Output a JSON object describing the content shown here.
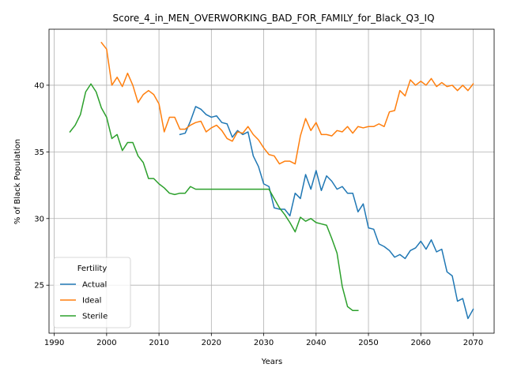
{
  "chart_data": {
    "type": "line",
    "title": "Score_4_in_MEN_OVERWORKING_BAD_FOR_FAMILY_for_Black_Q3_IQ",
    "xlabel": "Years",
    "ylabel": "% of Black Population",
    "xlim": [
      1989,
      2074
    ],
    "ylim": [
      21.4,
      44.2
    ],
    "xticks": [
      1990,
      2000,
      2010,
      2020,
      2030,
      2040,
      2050,
      2060,
      2070
    ],
    "yticks": [
      25,
      30,
      35,
      40
    ],
    "grid": true,
    "legend": {
      "title": "Fertility",
      "placement": "lower-left"
    },
    "series": [
      {
        "name": "Actual",
        "color": "#1f77b4",
        "x": [
          2014,
          2015,
          2016,
          2017,
          2018,
          2019,
          2020,
          2021,
          2022,
          2023,
          2024,
          2025,
          2026,
          2027,
          2028,
          2029,
          2030,
          2031,
          2032,
          2033,
          2034,
          2035,
          2036,
          2037,
          2038,
          2039,
          2040,
          2041,
          2042,
          2043,
          2044,
          2045,
          2046,
          2047,
          2048,
          2049,
          2050,
          2051,
          2052,
          2053,
          2054,
          2055,
          2056,
          2057,
          2058,
          2059,
          2060,
          2061,
          2062,
          2063,
          2064,
          2065,
          2066,
          2067,
          2068,
          2069,
          2070
        ],
        "y": [
          36.3,
          36.4,
          37.3,
          38.4,
          38.2,
          37.8,
          37.6,
          37.7,
          37.2,
          37.1,
          36.1,
          36.6,
          36.3,
          36.5,
          34.7,
          33.9,
          32.6,
          32.4,
          30.8,
          30.7,
          30.7,
          30.2,
          31.9,
          31.5,
          33.3,
          32.2,
          33.6,
          32.1,
          33.2,
          32.8,
          32.2,
          32.4,
          31.9,
          31.9,
          30.5,
          31.1,
          29.3,
          29.2,
          28.1,
          27.9,
          27.6,
          27.1,
          27.3,
          27.0,
          27.6,
          27.8,
          28.3,
          27.7,
          28.4,
          27.5,
          27.7,
          26.0,
          25.7,
          23.8,
          24.0,
          22.5,
          23.2
        ]
      },
      {
        "name": "Ideal",
        "color": "#ff7f0e",
        "x": [
          1999,
          2000,
          2001,
          2002,
          2003,
          2004,
          2005,
          2006,
          2007,
          2008,
          2009,
          2010,
          2011,
          2012,
          2013,
          2014,
          2015,
          2016,
          2017,
          2018,
          2019,
          2020,
          2021,
          2022,
          2023,
          2024,
          2025,
          2026,
          2027,
          2028,
          2029,
          2030,
          2031,
          2032,
          2033,
          2034,
          2035,
          2036,
          2037,
          2038,
          2039,
          2040,
          2041,
          2042,
          2043,
          2044,
          2045,
          2046,
          2047,
          2048,
          2049,
          2050,
          2051,
          2052,
          2053,
          2054,
          2055,
          2056,
          2057,
          2058,
          2059,
          2060,
          2061,
          2062,
          2063,
          2064,
          2065,
          2066,
          2067,
          2068,
          2069,
          2070
        ],
        "y": [
          43.2,
          42.7,
          40.0,
          40.6,
          39.9,
          40.9,
          40.0,
          38.7,
          39.3,
          39.6,
          39.3,
          38.6,
          36.5,
          37.6,
          37.6,
          36.7,
          36.7,
          37.0,
          37.2,
          37.3,
          36.5,
          36.8,
          37.0,
          36.6,
          36.0,
          35.8,
          36.5,
          36.4,
          36.9,
          36.3,
          35.9,
          35.3,
          34.8,
          34.7,
          34.1,
          34.3,
          34.3,
          34.1,
          36.2,
          37.5,
          36.6,
          37.2,
          36.3,
          36.3,
          36.2,
          36.6,
          36.5,
          36.9,
          36.4,
          36.9,
          36.8,
          36.9,
          36.9,
          37.1,
          36.9,
          38.0,
          38.1,
          39.6,
          39.2,
          40.4,
          40.0,
          40.3,
          40.0,
          40.5,
          39.9,
          40.2,
          39.9,
          40.0,
          39.6,
          40.0,
          39.6,
          40.1
        ]
      },
      {
        "name": "Sterile",
        "color": "#2ca02c",
        "x": [
          1993,
          1994,
          1995,
          1996,
          1997,
          1998,
          1999,
          2000,
          2001,
          2002,
          2003,
          2004,
          2005,
          2006,
          2007,
          2008,
          2009,
          2010,
          2011,
          2012,
          2013,
          2014,
          2015,
          2016,
          2017,
          2018,
          2019,
          2020,
          2021,
          2022,
          2023,
          2024,
          2025,
          2026,
          2027,
          2028,
          2029,
          2030,
          2031,
          2032,
          2033,
          2034,
          2035,
          2036,
          2037,
          2038,
          2039,
          2040,
          2041,
          2042,
          2043,
          2044,
          2045,
          2046,
          2047,
          2048
        ],
        "y": [
          36.5,
          37.0,
          37.8,
          39.5,
          40.1,
          39.5,
          38.3,
          37.6,
          36.0,
          36.3,
          35.1,
          35.7,
          35.7,
          34.7,
          34.2,
          33.0,
          33.0,
          32.6,
          32.3,
          31.9,
          31.8,
          31.9,
          31.9,
          32.4,
          32.2,
          32.2,
          32.2,
          32.2,
          32.2,
          32.2,
          32.2,
          32.2,
          32.2,
          32.2,
          32.2,
          32.2,
          32.2,
          32.2,
          32.2,
          31.5,
          30.8,
          30.3,
          29.7,
          29.0,
          30.1,
          29.8,
          30.0,
          29.7,
          29.6,
          29.5,
          28.5,
          27.4,
          24.9,
          23.4,
          23.1,
          23.1
        ]
      }
    ]
  }
}
